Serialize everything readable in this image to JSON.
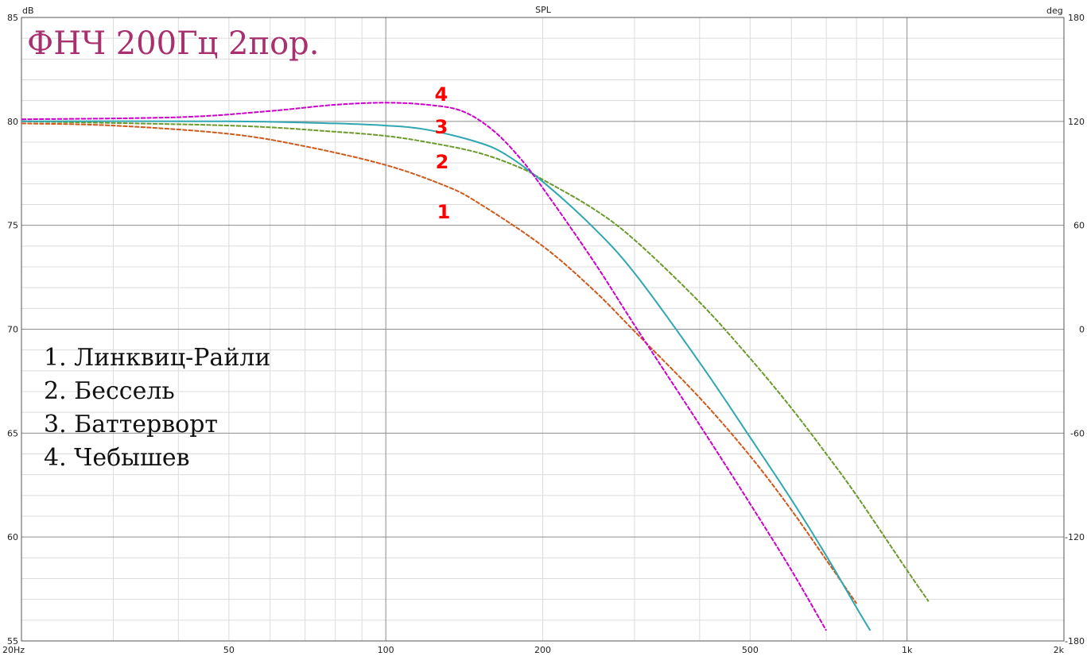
{
  "chart_data": {
    "type": "line",
    "top_title": "SPL",
    "title": "ФНЧ 200Гц 2пор.",
    "y_unit": "dB",
    "y2_unit": "deg",
    "x_scale": "log",
    "xlim": [
      20,
      2000
    ],
    "ylim": [
      55,
      85
    ],
    "y2lim": [
      -180,
      180
    ],
    "x_tick_labels": [
      "20Hz",
      "50",
      "100",
      "200",
      "500",
      "1k",
      "2k"
    ],
    "y_tick_labels": [
      "85",
      "80",
      "75",
      "70",
      "65",
      "60",
      "55"
    ],
    "y2_tick_labels": [
      "180",
      "120",
      "60",
      "0",
      "-60",
      "-120",
      "-180"
    ],
    "grid": true,
    "legend_items": [
      "1. Линквиц-Райли",
      "2. Бессель",
      "3. Баттерворт",
      "4. Чебышев"
    ],
    "series": [
      {
        "label": "1",
        "color": "#d0581a",
        "x": [
          20,
          30,
          50,
          70,
          100,
          130,
          150,
          200,
          250,
          300,
          400,
          500,
          600,
          700,
          800
        ],
        "y": [
          79.9,
          79.8,
          79.4,
          78.8,
          77.9,
          76.9,
          76.1,
          74.0,
          71.9,
          69.9,
          66.7,
          63.9,
          61.3,
          58.9,
          56.8
        ]
      },
      {
        "label": "2",
        "color": "#6a9a2a",
        "x": [
          20,
          50,
          80,
          100,
          120,
          150,
          180,
          200,
          250,
          300,
          400,
          500,
          600,
          700,
          800,
          1000,
          1100
        ],
        "y": [
          80.0,
          79.8,
          79.5,
          79.3,
          79.0,
          78.5,
          77.8,
          77.2,
          75.8,
          74.3,
          71.3,
          68.6,
          66.2,
          64.0,
          62.0,
          58.4,
          56.9
        ]
      },
      {
        "label": "3",
        "color": "#2fa7b2",
        "x": [
          20,
          50,
          80,
          100,
          120,
          150,
          170,
          200,
          250,
          300,
          400,
          500,
          600,
          700,
          800,
          850
        ],
        "y": [
          80.0,
          80.0,
          79.9,
          79.8,
          79.6,
          79.0,
          78.4,
          77.1,
          74.9,
          72.7,
          68.4,
          64.8,
          61.8,
          59.1,
          56.6,
          55.5
        ]
      },
      {
        "label": "4",
        "color": "#cc00cc",
        "x": [
          20,
          40,
          60,
          80,
          100,
          120,
          140,
          160,
          180,
          200,
          250,
          300,
          400,
          500,
          600,
          700
        ],
        "y": [
          80.1,
          80.2,
          80.5,
          80.8,
          80.9,
          80.8,
          80.5,
          79.6,
          78.3,
          76.8,
          73.3,
          70.2,
          65.4,
          61.6,
          58.4,
          55.5
        ]
      }
    ]
  }
}
